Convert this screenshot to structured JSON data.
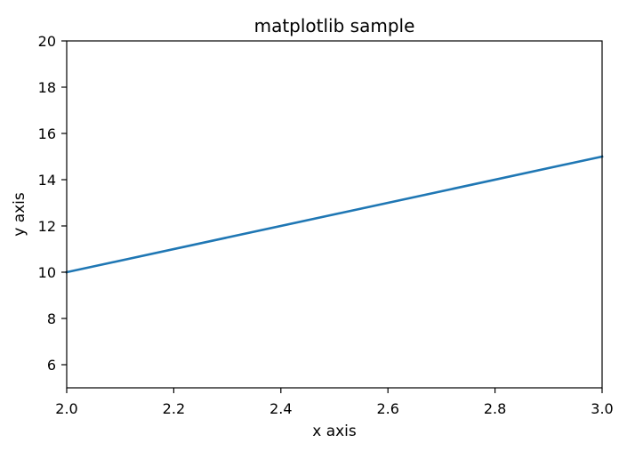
{
  "chart_data": {
    "type": "line",
    "title": "matplotlib sample",
    "xlabel": "x axis",
    "ylabel": "y axis",
    "xlim": [
      2.0,
      3.0
    ],
    "ylim": [
      5,
      20
    ],
    "xticks": [
      2.0,
      2.2,
      2.4,
      2.6,
      2.8,
      3.0
    ],
    "xtick_labels": [
      "2.0",
      "2.2",
      "2.4",
      "2.6",
      "2.8",
      "3.0"
    ],
    "yticks": [
      6,
      8,
      10,
      12,
      14,
      16,
      18,
      20
    ],
    "ytick_labels": [
      "6",
      "8",
      "10",
      "12",
      "14",
      "16",
      "18",
      "20"
    ],
    "grid": false,
    "series": [
      {
        "x": [
          2.0,
          3.0
        ],
        "y": [
          10,
          15
        ],
        "color": "#1f77b4"
      }
    ]
  }
}
